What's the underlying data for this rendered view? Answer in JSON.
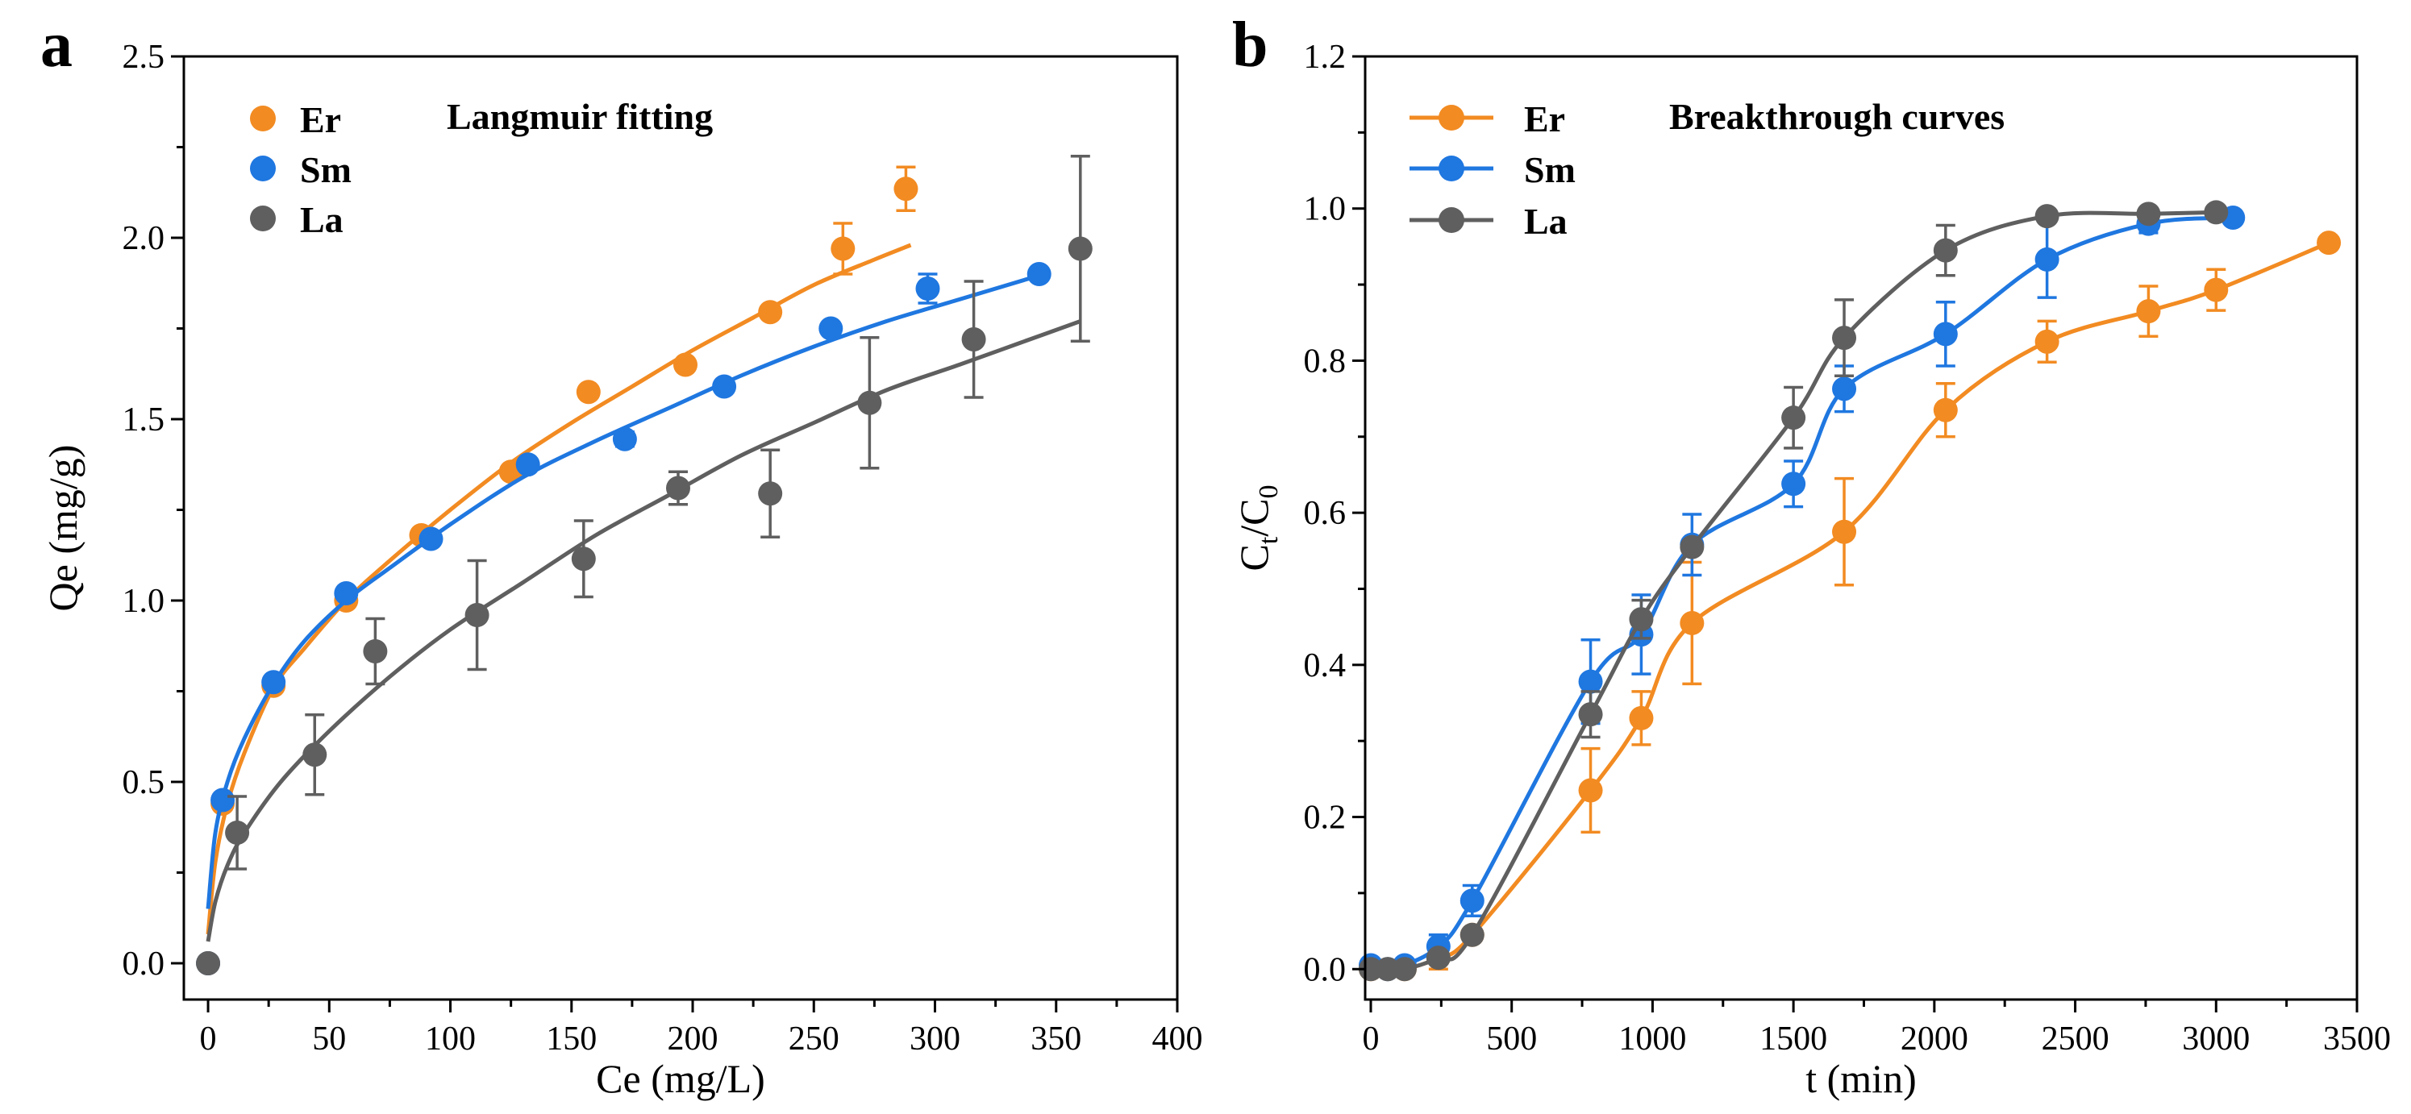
{
  "colors": {
    "Er": "#F28B22",
    "Sm": "#1F77E0",
    "La": "#5F5F5F",
    "axis": "#000000"
  },
  "chart_data": [
    {
      "panel_label": "a",
      "type": "scatter",
      "title": "Langmuir fitting",
      "xlabel": "Ce (mg/L)",
      "ylabel": "Qe (mg/g)",
      "xlim": [
        -10,
        400
      ],
      "ylim": [
        -0.1,
        2.5
      ],
      "xticks": [
        0,
        50,
        100,
        150,
        200,
        250,
        300,
        350,
        400
      ],
      "yticks": [
        0.0,
        0.5,
        1.0,
        1.5,
        2.0,
        2.5
      ],
      "xtick_labels": [
        "0",
        "50",
        "100",
        "150",
        "200",
        "250",
        "300",
        "350",
        "400"
      ],
      "ytick_labels": [
        "0.0",
        "0.5",
        "1.0",
        "1.5",
        "2.0",
        "2.5"
      ],
      "legend": "top-left",
      "series": [
        {
          "name": "Er",
          "color_key": "Er",
          "points": [
            [
              0,
              0.0,
              0
            ],
            [
              6,
              0.44,
              0
            ],
            [
              27,
              0.765,
              0
            ],
            [
              57,
              1.0,
              0
            ],
            [
              88,
              1.18,
              0
            ],
            [
              125,
              1.355,
              0
            ],
            [
              157,
              1.575,
              0
            ],
            [
              197,
              1.65,
              0
            ],
            [
              232,
              1.795,
              0
            ],
            [
              262,
              1.97,
              0.07
            ],
            [
              288,
              2.135,
              0.06
            ]
          ],
          "fit": [
            [
              0,
              0.08
            ],
            [
              3,
              0.28
            ],
            [
              8,
              0.44
            ],
            [
              15,
              0.58
            ],
            [
              27,
              0.76
            ],
            [
              40,
              0.87
            ],
            [
              57,
              1.0
            ],
            [
              75,
              1.11
            ],
            [
              100,
              1.25
            ],
            [
              125,
              1.38
            ],
            [
              150,
              1.49
            ],
            [
              175,
              1.59
            ],
            [
              200,
              1.69
            ],
            [
              225,
              1.78
            ],
            [
              250,
              1.87
            ],
            [
              275,
              1.94
            ],
            [
              290,
              1.98
            ]
          ]
        },
        {
          "name": "Sm",
          "color_key": "Sm",
          "points": [
            [
              0,
              0.0,
              0
            ],
            [
              6,
              0.45,
              0
            ],
            [
              27,
              0.775,
              0
            ],
            [
              57,
              1.02,
              0
            ],
            [
              92,
              1.17,
              0
            ],
            [
              132,
              1.375,
              0
            ],
            [
              172,
              1.445,
              0.02
            ],
            [
              213,
              1.59,
              0
            ],
            [
              257,
              1.75,
              0
            ],
            [
              297,
              1.86,
              0.04
            ],
            [
              343,
              1.9,
              0
            ]
          ],
          "fit": [
            [
              0,
              0.15
            ],
            [
              3,
              0.36
            ],
            [
              8,
              0.5
            ],
            [
              15,
              0.62
            ],
            [
              27,
              0.77
            ],
            [
              40,
              0.89
            ],
            [
              57,
              1.0
            ],
            [
              75,
              1.09
            ],
            [
              100,
              1.21
            ],
            [
              130,
              1.34
            ],
            [
              160,
              1.44
            ],
            [
              190,
              1.53
            ],
            [
              220,
              1.62
            ],
            [
              250,
              1.7
            ],
            [
              280,
              1.77
            ],
            [
              310,
              1.83
            ],
            [
              345,
              1.9
            ]
          ]
        },
        {
          "name": "La",
          "color_key": "La",
          "points": [
            [
              0,
              0.0,
              0
            ],
            [
              12,
              0.36,
              0.1
            ],
            [
              44,
              0.575,
              0.11
            ],
            [
              69,
              0.86,
              0.09
            ],
            [
              111,
              0.96,
              0.15
            ],
            [
              155,
              1.115,
              0.105
            ],
            [
              194,
              1.31,
              0.045
            ],
            [
              232,
              1.295,
              0.12
            ],
            [
              273,
              1.545,
              0.18
            ],
            [
              316,
              1.72,
              0.16
            ],
            [
              360,
              1.97,
              0.255
            ]
          ],
          "fit": [
            [
              0,
              0.06
            ],
            [
              3,
              0.17
            ],
            [
              8,
              0.27
            ],
            [
              15,
              0.36
            ],
            [
              30,
              0.5
            ],
            [
              50,
              0.64
            ],
            [
              75,
              0.79
            ],
            [
              100,
              0.92
            ],
            [
              130,
              1.05
            ],
            [
              160,
              1.18
            ],
            [
              190,
              1.29
            ],
            [
              220,
              1.4
            ],
            [
              250,
              1.49
            ],
            [
              280,
              1.58
            ],
            [
              310,
              1.65
            ],
            [
              335,
              1.71
            ],
            [
              360,
              1.77
            ]
          ]
        }
      ]
    },
    {
      "panel_label": "b",
      "type": "line",
      "title": "Breakthrough curves",
      "xlabel": "t (min)",
      "ylabel": "Ct/C0",
      "ylabel_main": "C",
      "ylabel_sub1": "t",
      "ylabel_sub2": "0",
      "xlim": [
        -20,
        3500
      ],
      "ylim": [
        -0.04,
        1.2
      ],
      "xticks": [
        0,
        500,
        1000,
        1500,
        2000,
        2500,
        3000,
        3500
      ],
      "yticks": [
        0.0,
        0.2,
        0.4,
        0.6,
        0.8,
        1.0,
        1.2
      ],
      "xtick_labels": [
        "0",
        "500",
        "1000",
        "1500",
        "2000",
        "2500",
        "3000",
        "3500"
      ],
      "ytick_labels": [
        "0.0",
        "0.2",
        "0.4",
        "0.6",
        "0.8",
        "1.0",
        "1.2"
      ],
      "legend": "top-left",
      "series": [
        {
          "name": "Er",
          "color_key": "Er",
          "points": [
            [
              0,
              0.0,
              0
            ],
            [
              60,
              0.0,
              0
            ],
            [
              120,
              0.0,
              0
            ],
            [
              240,
              0.015,
              0.015
            ],
            [
              360,
              0.045,
              0
            ],
            [
              780,
              0.235,
              0.055
            ],
            [
              960,
              0.33,
              0.035
            ],
            [
              1140,
              0.455,
              0.08
            ],
            [
              1680,
              0.575,
              0.07
            ],
            [
              2040,
              0.735,
              0.035
            ],
            [
              2400,
              0.825,
              0.027
            ],
            [
              2760,
              0.865,
              0.033
            ],
            [
              3000,
              0.893,
              0.027
            ],
            [
              3400,
              0.955,
              0
            ]
          ]
        },
        {
          "name": "Sm",
          "color_key": "Sm",
          "points": [
            [
              0,
              0.005,
              0
            ],
            [
              60,
              0.0,
              0
            ],
            [
              120,
              0.005,
              0
            ],
            [
              240,
              0.03,
              0.015
            ],
            [
              360,
              0.09,
              0.02
            ],
            [
              780,
              0.378,
              0.055
            ],
            [
              960,
              0.44,
              0.052
            ],
            [
              1140,
              0.558,
              0.04
            ],
            [
              1500,
              0.638,
              0.03
            ],
            [
              1680,
              0.763,
              0.03
            ],
            [
              2040,
              0.835,
              0.042
            ],
            [
              2400,
              0.933,
              0.05
            ],
            [
              2760,
              0.98,
              0.012
            ],
            [
              3060,
              0.988,
              0.005
            ]
          ]
        },
        {
          "name": "La",
          "color_key": "La",
          "points": [
            [
              0,
              0.0,
              0
            ],
            [
              60,
              0.0,
              0
            ],
            [
              120,
              0.0,
              0
            ],
            [
              240,
              0.015,
              0
            ],
            [
              360,
              0.045,
              0
            ],
            [
              780,
              0.335,
              0.03
            ],
            [
              960,
              0.46,
              0.025
            ],
            [
              1140,
              0.555,
              0
            ],
            [
              1500,
              0.725,
              0.04
            ],
            [
              1680,
              0.83,
              0.05
            ],
            [
              2040,
              0.945,
              0.033
            ],
            [
              2400,
              0.99,
              0
            ],
            [
              2760,
              0.993,
              0
            ],
            [
              3000,
              0.995,
              0
            ]
          ]
        }
      ]
    }
  ]
}
